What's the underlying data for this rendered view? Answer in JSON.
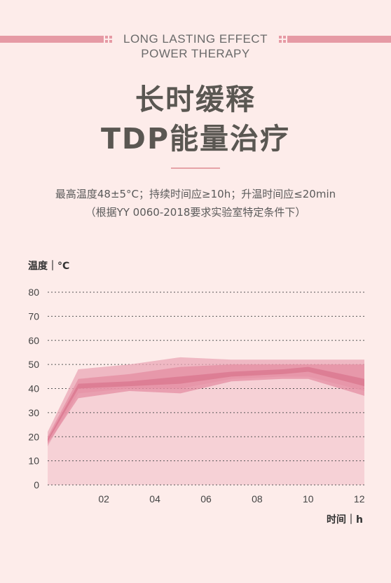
{
  "header": {
    "subtitle_line1": "LONG LASTING EFFECT",
    "subtitle_line2": "POWER THERAPY",
    "title_line1": "长时缓释",
    "title_line2": "TDP能量治疗",
    "spec_line1": "最高温度48±5°C；持续时间应≥10h；升温时间应≤20min",
    "spec_line2": "（根据YY 0060-2018要求实验室特定条件下）"
  },
  "colors": {
    "background": "#fdecea",
    "accent": "#e69aa5",
    "title": "#5a5752",
    "band_outer": "#eaa7b6",
    "band_mid": "#e48aa0",
    "band_inner": "#d9768e",
    "area_fill": "#f6d1d6"
  },
  "chart_data": {
    "type": "area",
    "ylabel": "温度｜°C",
    "xlabel": "时间｜h",
    "ylim": [
      0,
      80
    ],
    "yticks": [
      0,
      10,
      20,
      30,
      40,
      50,
      60,
      70,
      80
    ],
    "xlim": [
      -0.2,
      12.2
    ],
    "xticks": [
      2,
      4,
      6,
      8,
      10,
      12
    ],
    "xtick_labels": [
      "02",
      "04",
      "06",
      "08",
      "10",
      "12"
    ],
    "grid": "horizontal-dashed",
    "x": [
      -0.2,
      1,
      3,
      5,
      7,
      9,
      10,
      12.2
    ],
    "series": [
      {
        "upper": [
          22,
          48,
          50,
          53,
          52,
          52,
          52,
          52
        ],
        "lower": [
          16,
          38,
          40,
          40,
          44,
          45,
          45,
          39
        ]
      },
      {
        "upper": [
          20,
          44,
          46,
          49,
          50,
          50,
          50,
          50
        ],
        "lower": [
          17,
          36,
          39,
          38,
          43,
          44,
          44,
          37
        ]
      },
      {
        "upper": [
          19,
          42,
          43,
          45,
          47,
          48,
          49,
          44
        ],
        "lower": [
          18,
          40,
          41,
          42,
          45,
          46,
          47,
          41
        ]
      }
    ],
    "area_top": [
      18,
      41,
      42,
      43,
      46,
      47,
      48,
      42
    ]
  }
}
